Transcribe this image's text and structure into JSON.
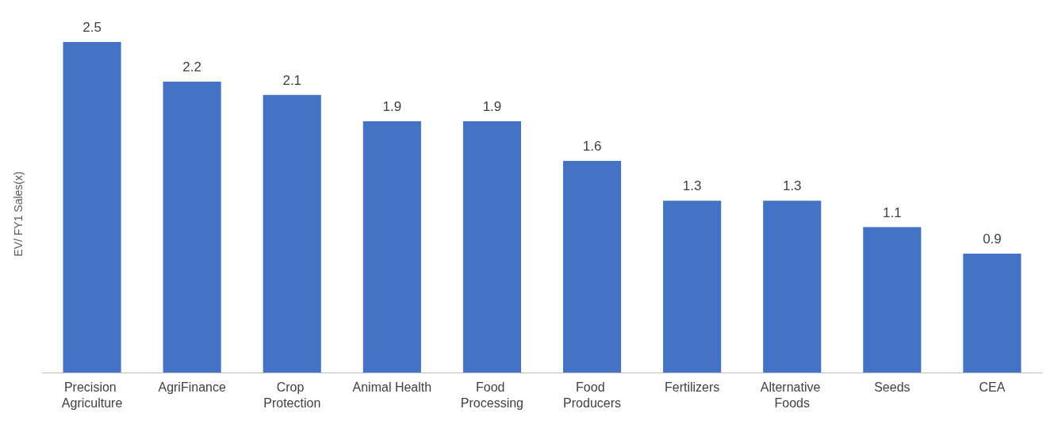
{
  "chart_data": {
    "type": "bar",
    "ylabel": "EV/ FY1 Sales(x)",
    "categories": [
      "Precision Agriculture",
      "AgriFinance",
      "Crop Protection",
      "Animal Health",
      "Food Processing",
      "Food Producers",
      "Fertilizers",
      "Alternative Foods",
      "Seeds",
      "CEA"
    ],
    "values": [
      2.5,
      2.2,
      2.1,
      1.9,
      1.9,
      1.6,
      1.3,
      1.3,
      1.1,
      0.9
    ],
    "color": "#4472c4",
    "data_labels": true
  }
}
